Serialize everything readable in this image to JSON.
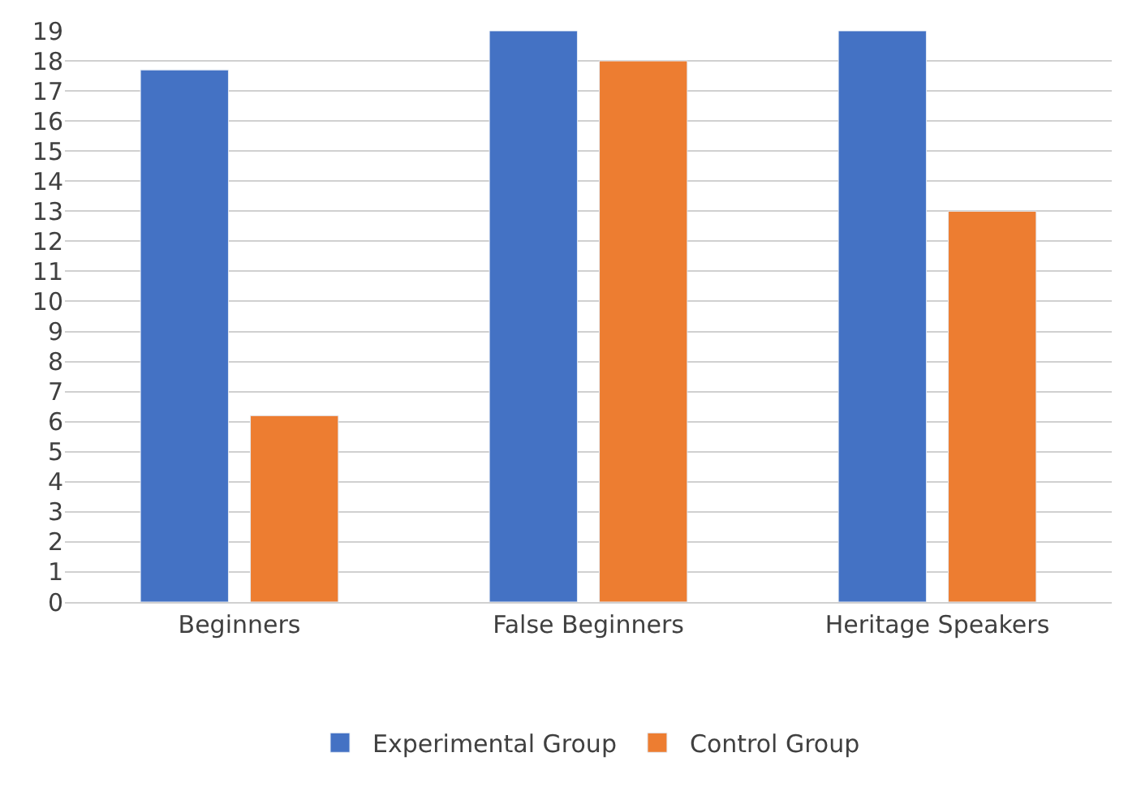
{
  "chart_data": {
    "type": "bar",
    "categories": [
      "Beginners",
      "False Beginners",
      "Heritage Speakers"
    ],
    "series": [
      {
        "name": "Experimental Group",
        "color": "#4472c4",
        "values": [
          17.7,
          19,
          19
        ]
      },
      {
        "name": "Control Group",
        "color": "#ed7d31",
        "values": [
          6.2,
          18,
          13
        ]
      }
    ],
    "ylim": [
      0,
      19
    ],
    "yticks": [
      0,
      1,
      2,
      3,
      4,
      5,
      6,
      7,
      8,
      9,
      10,
      11,
      12,
      13,
      14,
      15,
      16,
      17,
      18,
      19
    ],
    "grid": "y",
    "legend": "bottom"
  }
}
